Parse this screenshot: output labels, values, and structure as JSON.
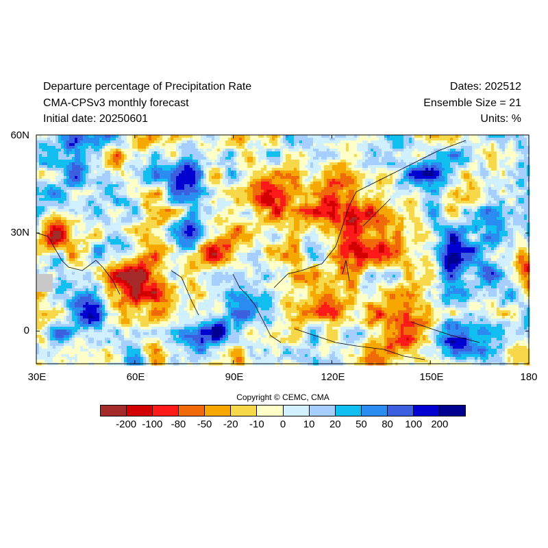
{
  "header": {
    "title": "Departure percentage of Precipitation Rate",
    "model": "CMA-CPSv3 monthly forecast",
    "initial_date": "Initial date: 20250601",
    "dates": "Dates: 202512",
    "ensemble": "Ensemble Size = 21",
    "units": "Units: %"
  },
  "map": {
    "lon_range": [
      30,
      180
    ],
    "lat_range": [
      -10,
      60
    ],
    "x_ticks": [
      "30E",
      "60E",
      "90E",
      "120E",
      "150E",
      "180"
    ],
    "y_ticks": [
      "60N",
      "30N",
      "0"
    ],
    "missing_color": "#c8c8c8"
  },
  "copyright": "Copyright © CEMC, CMA",
  "legend": {
    "colors": [
      "#a52a2a",
      "#d20000",
      "#ff1a1a",
      "#f06a0a",
      "#f7a800",
      "#f7d84a",
      "#ffffc8",
      "#d0f0ff",
      "#a6cfff",
      "#10bff0",
      "#2a8cf0",
      "#3c5fe0",
      "#0000d0",
      "#000090"
    ],
    "labels": [
      "-200",
      "-100",
      "-80",
      "-50",
      "-20",
      "-10",
      "0",
      "10",
      "20",
      "50",
      "80",
      "100",
      "200"
    ]
  }
}
